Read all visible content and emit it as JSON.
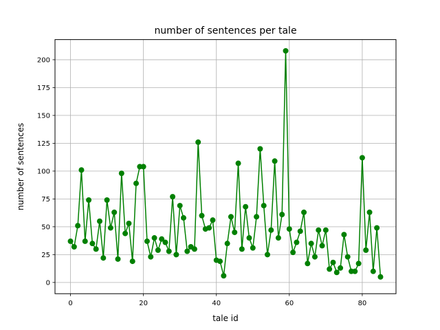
{
  "chart_data": {
    "type": "line",
    "title": "number of sentences per tale",
    "xlabel": "tale id",
    "ylabel": "number of sentences",
    "xlim": [
      -4.25,
      89.25
    ],
    "ylim": [
      -10.1,
      218.1
    ],
    "xticks": [
      0,
      20,
      40,
      60,
      80
    ],
    "yticks": [
      0,
      25,
      50,
      75,
      100,
      125,
      150,
      175,
      200
    ],
    "grid": true,
    "marker": "circle",
    "color": "#008000",
    "x": [
      0,
      1,
      2,
      3,
      4,
      5,
      6,
      7,
      8,
      9,
      10,
      11,
      12,
      13,
      14,
      15,
      16,
      17,
      18,
      19,
      20,
      21,
      22,
      23,
      24,
      25,
      26,
      27,
      28,
      29,
      30,
      31,
      32,
      33,
      34,
      35,
      36,
      37,
      38,
      39,
      40,
      41,
      42,
      43,
      44,
      45,
      46,
      47,
      48,
      49,
      50,
      51,
      52,
      53,
      54,
      55,
      56,
      57,
      58,
      59,
      60,
      61,
      62,
      63,
      64,
      65,
      66,
      67,
      68,
      69,
      70,
      71,
      72,
      73,
      74,
      75,
      76,
      77,
      78,
      79,
      80,
      81,
      82,
      83,
      84,
      85
    ],
    "y": [
      37,
      32,
      51,
      101,
      37,
      74,
      35,
      30,
      55,
      22,
      74,
      49,
      63,
      21,
      98,
      44,
      53,
      19,
      89,
      104,
      104,
      37,
      23,
      40,
      29,
      39,
      36,
      28,
      77,
      25,
      69,
      58,
      28,
      32,
      30,
      126,
      60,
      48,
      49,
      56,
      20,
      19,
      6,
      35,
      59,
      45,
      107,
      30,
      68,
      40,
      31,
      59,
      120,
      69,
      25,
      47,
      109,
      40,
      61,
      208,
      48,
      27,
      36,
      46,
      63,
      17,
      35,
      23,
      47,
      33,
      47,
      12,
      18,
      9,
      13,
      43,
      23,
      10,
      10,
      17,
      112,
      29,
      63,
      10,
      49,
      5
    ]
  }
}
